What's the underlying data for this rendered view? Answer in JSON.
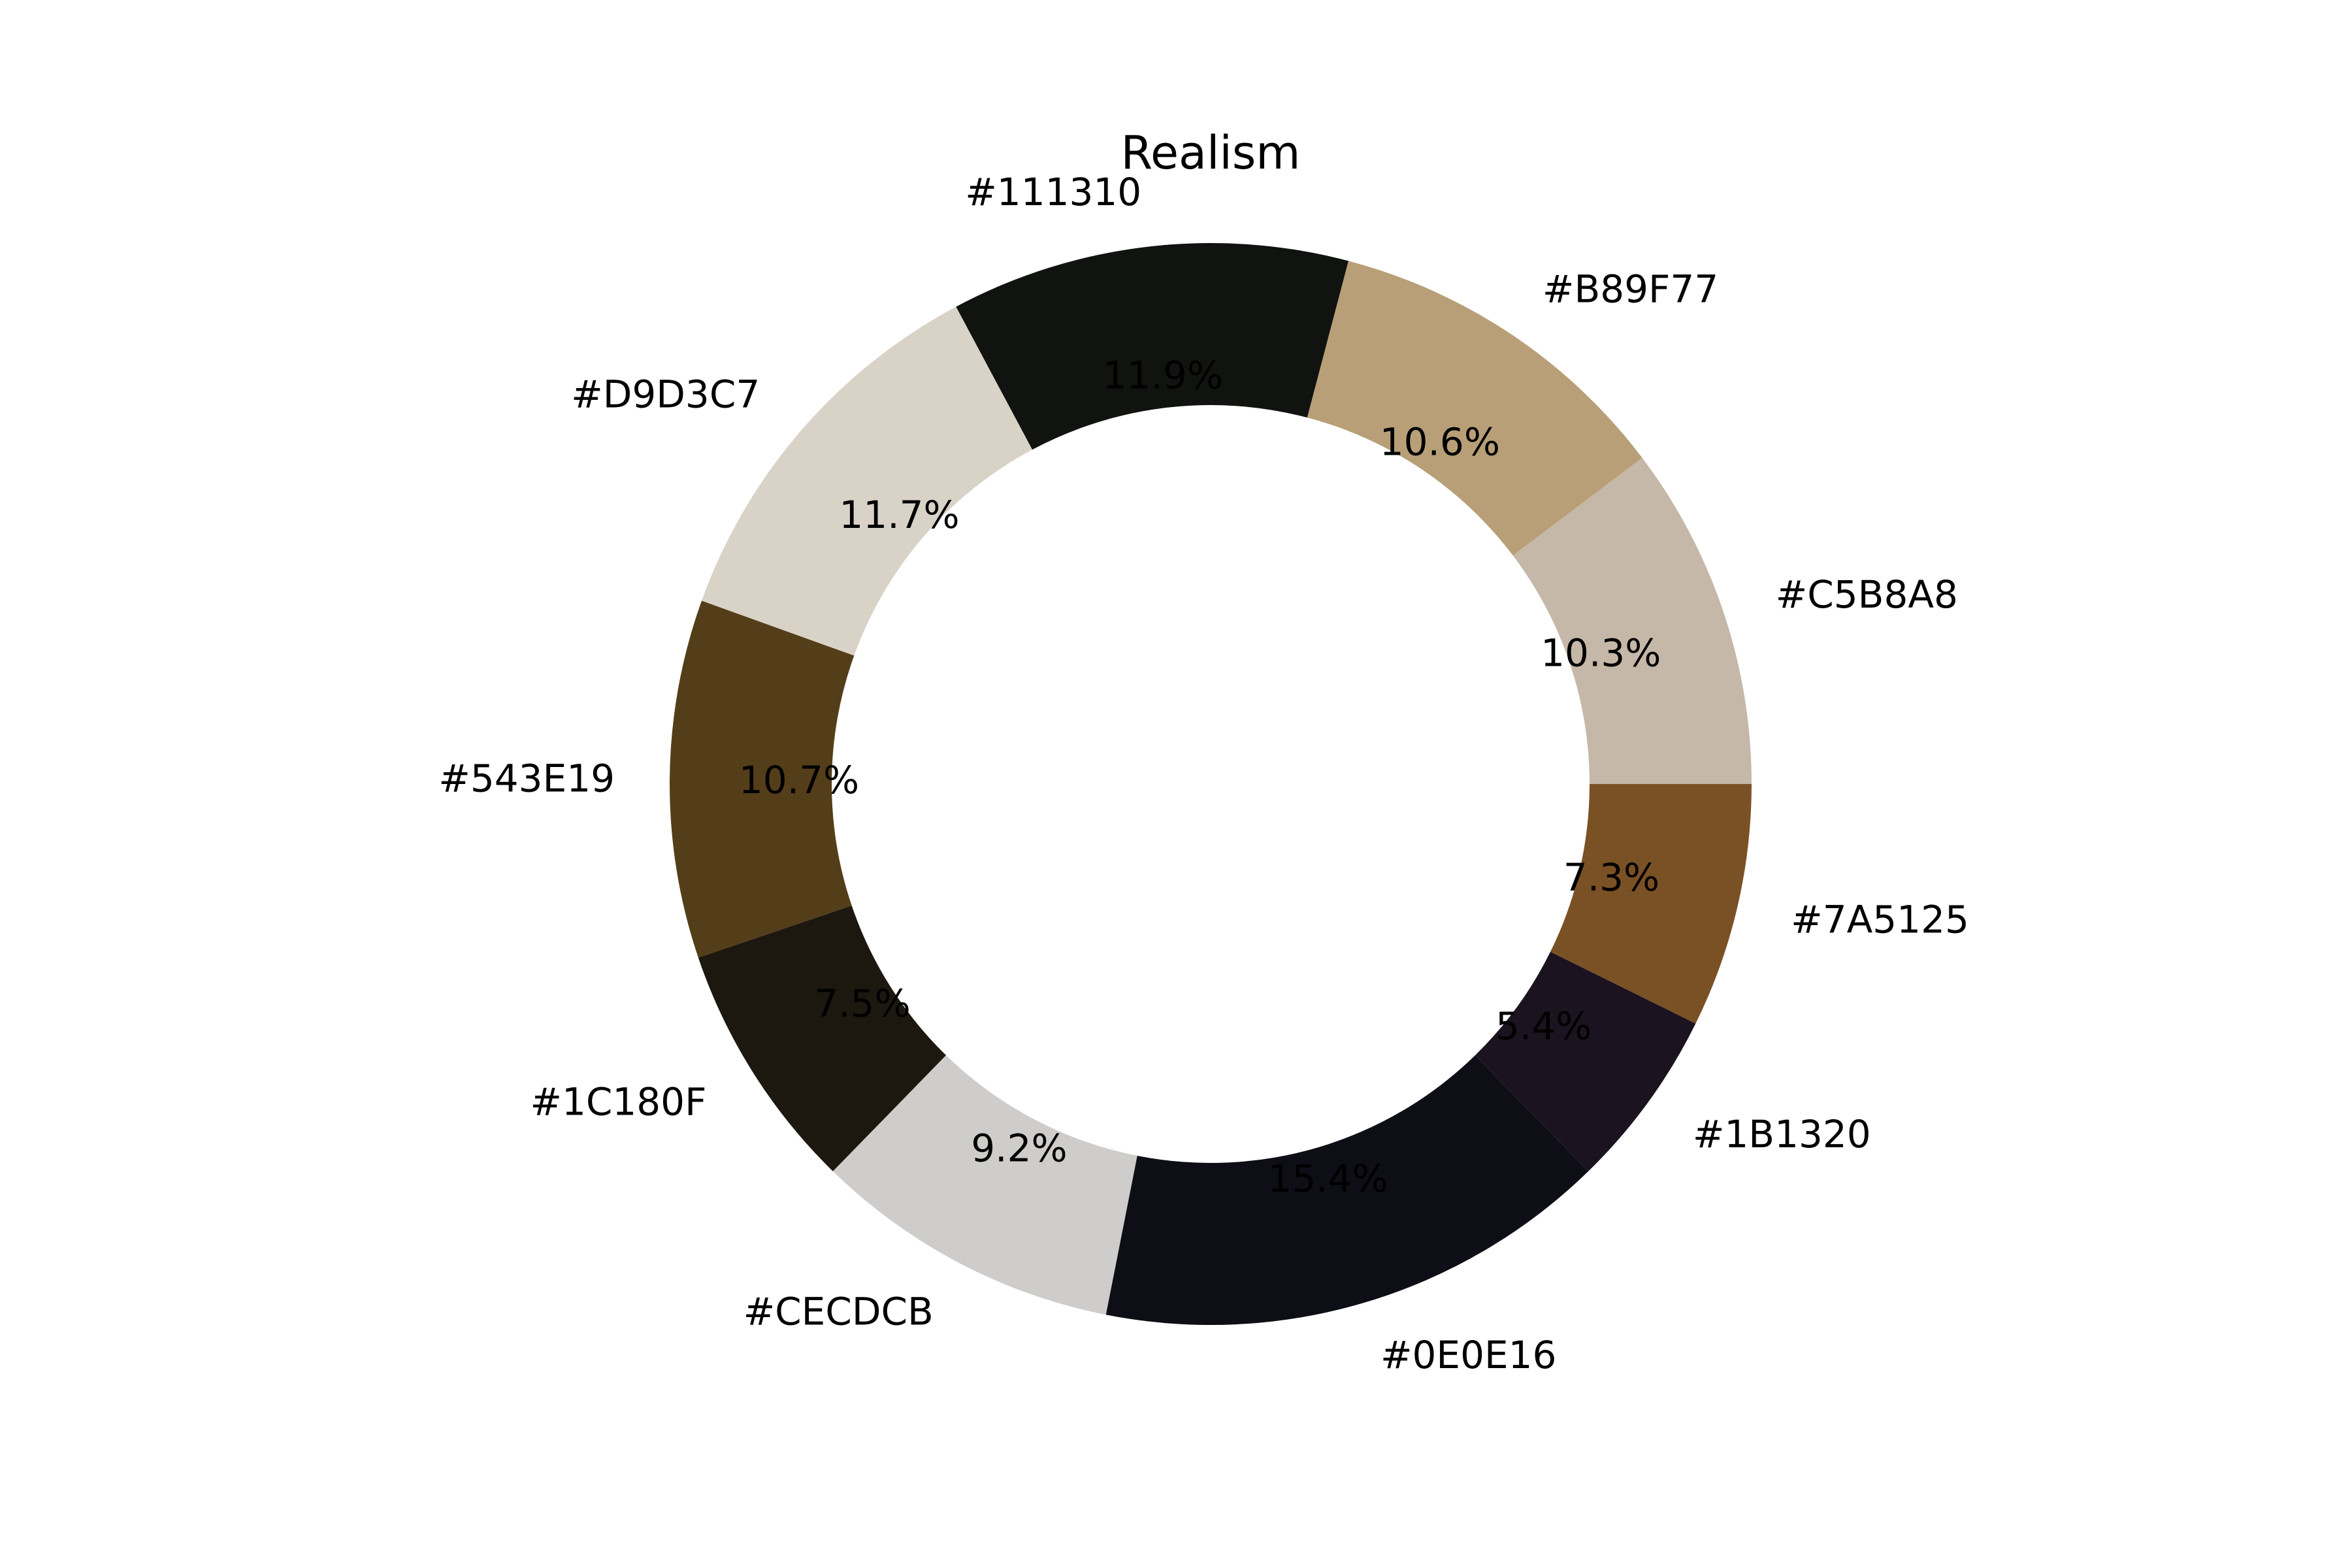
{
  "chart_data": {
    "type": "pie",
    "variant": "donut",
    "title": "Realism",
    "start_angle": 0,
    "direction": "counterclockwise",
    "slices": [
      {
        "label": "#C5B8A8",
        "value": 10.3,
        "display": "10.3%",
        "color": "#C5B8A8"
      },
      {
        "label": "#B89F77",
        "value": 10.6,
        "display": "10.6%",
        "color": "#B89F77"
      },
      {
        "label": "#111310",
        "value": 11.9,
        "display": "11.9%",
        "color": "#111310"
      },
      {
        "label": "#D9D3C7",
        "value": 11.7,
        "display": "11.7%",
        "color": "#D9D3C7"
      },
      {
        "label": "#543E19",
        "value": 10.7,
        "display": "10.7%",
        "color": "#543E19"
      },
      {
        "label": "#1C180F",
        "value": 7.5,
        "display": "7.5%",
        "color": "#1C180F"
      },
      {
        "label": "#CECDCB",
        "value": 9.2,
        "display": "9.2%",
        "color": "#CECDCB"
      },
      {
        "label": "#0E0E16",
        "value": 15.4,
        "display": "15.4%",
        "color": "#0E0E16"
      },
      {
        "label": "#1B1320",
        "value": 5.4,
        "display": "5.4%",
        "color": "#1B1320"
      },
      {
        "label": "#7A5125",
        "value": 7.3,
        "display": "7.3%",
        "color": "#7A5125"
      }
    ]
  }
}
